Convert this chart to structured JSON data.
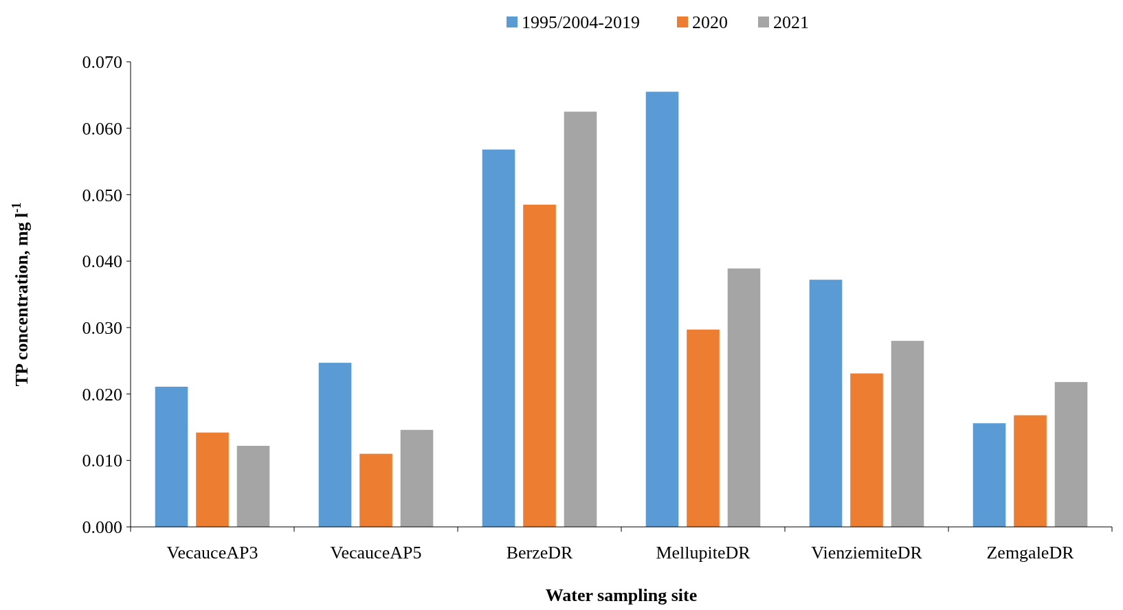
{
  "chart_data": {
    "type": "bar",
    "xlabel": "Water sampling site",
    "ylabel": "TP concentration, mg l$^{-1}$",
    "categories": [
      "VecauceAP3",
      "VecauceAP5",
      "BerzeDR",
      "MellupiteDR",
      "VienziemiteDR",
      "ZemgaleDR"
    ],
    "series": [
      {
        "name": "1995/2004-2019",
        "color": "#5b9bd5",
        "values": [
          0.0211,
          0.0247,
          0.0568,
          0.0655,
          0.0372,
          0.0156
        ]
      },
      {
        "name": "2020",
        "color": "#ed7d31",
        "values": [
          0.0142,
          0.011,
          0.0485,
          0.0297,
          0.0231,
          0.0168
        ]
      },
      {
        "name": "2021",
        "color": "#a5a5a5",
        "values": [
          0.0122,
          0.0146,
          0.0625,
          0.0389,
          0.028,
          0.0218
        ]
      }
    ],
    "ylim": [
      0,
      0.07
    ],
    "yticks": [
      {
        "value": 0,
        "label": "0.000"
      },
      {
        "value": 0.01,
        "label": "0.010"
      },
      {
        "value": 0.02,
        "label": "0.020"
      },
      {
        "value": 0.03,
        "label": "0.030"
      },
      {
        "value": 0.04,
        "label": "0.040"
      },
      {
        "value": 0.05,
        "label": "0.050"
      },
      {
        "value": 0.06,
        "label": "0.060"
      },
      {
        "value": 0.07,
        "label": "0.070"
      }
    ],
    "grid": false,
    "legend": "top"
  }
}
